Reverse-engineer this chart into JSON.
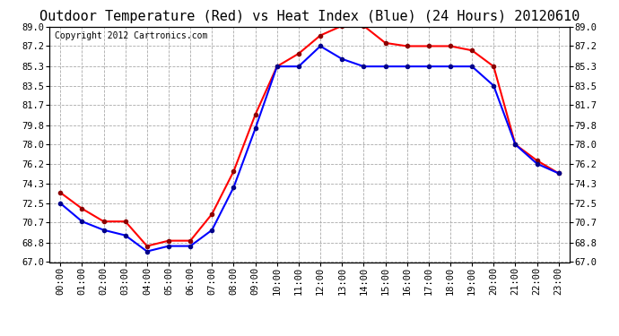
{
  "title": "Outdoor Temperature (Red) vs Heat Index (Blue) (24 Hours) 20120610",
  "copyright_text": "Copyright 2012 Cartronics.com",
  "x_labels": [
    "00:00",
    "01:00",
    "02:00",
    "03:00",
    "04:00",
    "05:00",
    "06:00",
    "07:00",
    "08:00",
    "09:00",
    "10:00",
    "11:00",
    "12:00",
    "13:00",
    "14:00",
    "15:00",
    "16:00",
    "17:00",
    "18:00",
    "19:00",
    "20:00",
    "21:00",
    "22:00",
    "23:00"
  ],
  "red_temp": [
    73.5,
    72.0,
    70.8,
    70.8,
    68.5,
    69.0,
    69.0,
    71.5,
    75.5,
    80.8,
    85.3,
    86.5,
    88.2,
    89.1,
    89.1,
    87.5,
    87.2,
    87.2,
    87.2,
    86.8,
    85.3,
    78.0,
    76.5,
    75.3
  ],
  "blue_heat": [
    72.5,
    70.8,
    70.0,
    69.5,
    68.0,
    68.5,
    68.5,
    70.0,
    74.0,
    79.5,
    85.3,
    85.3,
    87.2,
    86.0,
    85.3,
    85.3,
    85.3,
    85.3,
    85.3,
    85.3,
    83.5,
    78.0,
    76.2,
    75.3
  ],
  "red_color": "red",
  "blue_color": "blue",
  "bg_color": "white",
  "plot_bg_color": "white",
  "grid_color": "#aaaaaa",
  "ylim_min": 67.0,
  "ylim_max": 89.0,
  "ytick_values": [
    67.0,
    68.8,
    70.7,
    72.5,
    74.3,
    76.2,
    78.0,
    79.8,
    81.7,
    83.5,
    85.3,
    87.2,
    89.0
  ],
  "ytick_labels": [
    "67.0",
    "68.8",
    "70.7",
    "72.5",
    "74.3",
    "76.2",
    "78.0",
    "79.8",
    "81.7",
    "83.5",
    "85.3",
    "87.2",
    "89.0"
  ],
  "title_fontsize": 11,
  "copyright_fontsize": 7,
  "tick_fontsize": 7.5,
  "marker": "o",
  "marker_size": 3.0,
  "line_width": 1.5
}
